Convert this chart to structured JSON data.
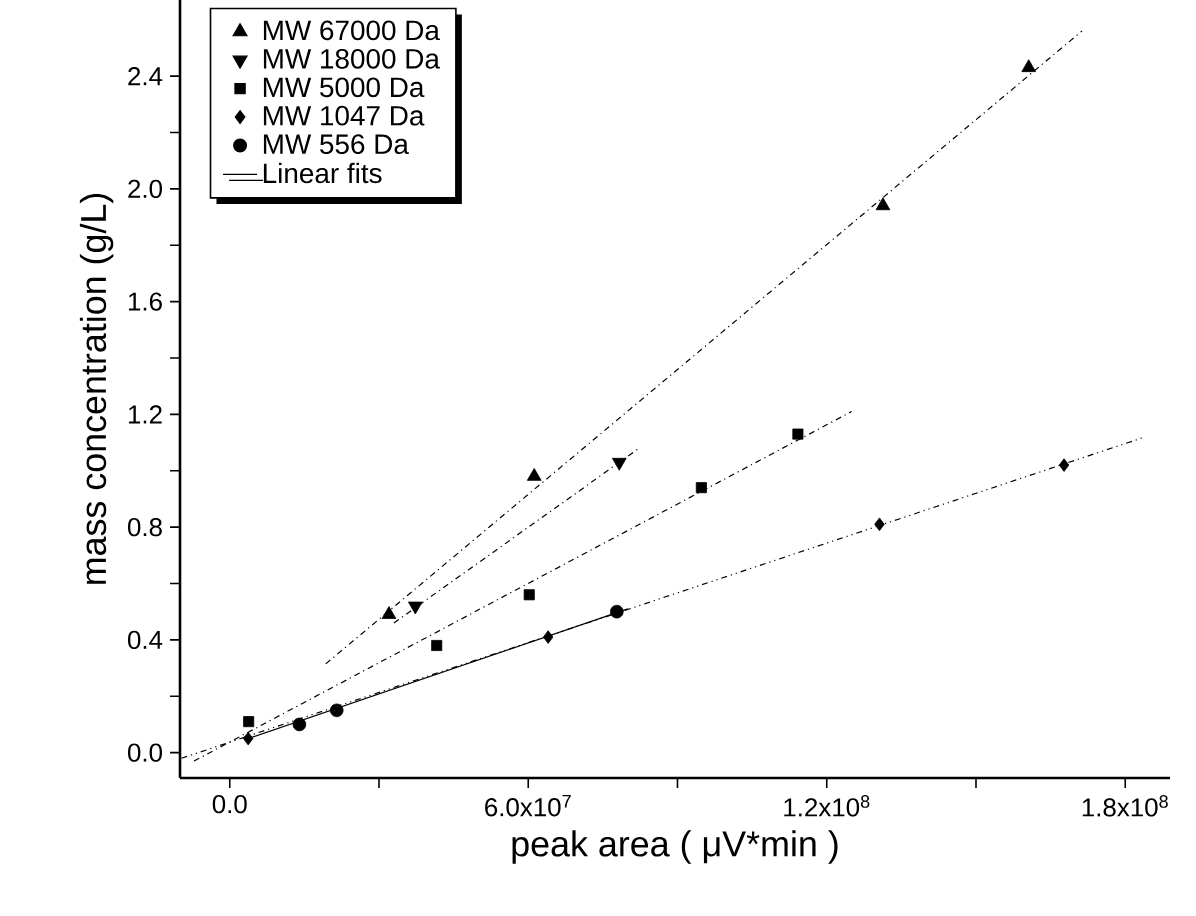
{
  "chart_data": {
    "type": "scatter",
    "xlabel": "peak area ( μV*min )",
    "ylabel": "mass concentration (g/L)",
    "xlim": [
      -10000000,
      189000000
    ],
    "ylim": [
      -0.09,
      2.67
    ],
    "xticks": [
      {
        "value": 0,
        "label": "0.0"
      },
      {
        "value": 30000000,
        "label": null
      },
      {
        "value": 60000000,
        "label": "6.0x10$^{7}$"
      },
      {
        "value": 90000000,
        "label": null
      },
      {
        "value": 120000000,
        "label": "1.2x10$^{8}$"
      },
      {
        "value": 150000000,
        "label": null
      },
      {
        "value": 180000000,
        "label": "1.8x10$^{8}$"
      }
    ],
    "yticks": [
      {
        "value": 0,
        "label": "0.0"
      },
      {
        "value": 0.2,
        "label": null
      },
      {
        "value": 0.4,
        "label": "0.4"
      },
      {
        "value": 0.6,
        "label": null
      },
      {
        "value": 0.8,
        "label": "0.8"
      },
      {
        "value": 1.0,
        "label": null
      },
      {
        "value": 1.2,
        "label": "1.2"
      },
      {
        "value": 1.4,
        "label": null
      },
      {
        "value": 1.6,
        "label": "1.6"
      },
      {
        "value": 1.8,
        "label": null
      },
      {
        "value": 2.0,
        "label": "2.0"
      },
      {
        "value": 2.2,
        "label": null
      },
      {
        "value": 2.4,
        "label": "2.4"
      }
    ],
    "legend": "top left",
    "grid": false,
    "series": [
      {
        "name": "MW 67000 Da",
        "color": "#000000",
        "marker": "triangle",
        "x": [
          32000000,
          61200000,
          131300000,
          160600000
        ],
        "values": [
          0.49,
          0.98,
          1.94,
          2.43
        ]
      },
      {
        "name": "MW 18000 Da",
        "color": "#000000",
        "marker": "triangle down",
        "x": [
          37300000,
          78300000
        ],
        "values": [
          0.52,
          1.03
        ]
      },
      {
        "name": "MW 5000 Da",
        "color": "#000000",
        "marker": "square",
        "x": [
          3800000,
          41600000,
          60200000,
          94800000,
          114200000
        ],
        "values": [
          0.11,
          0.38,
          0.56,
          0.94,
          1.13
        ]
      },
      {
        "name": "MW 1047 Da",
        "color": "#000000",
        "marker": "diamond",
        "x": [
          3700000,
          64000000,
          130600000,
          167700000
        ],
        "values": [
          0.05,
          0.41,
          0.81,
          1.02
        ]
      },
      {
        "name": "MW 556 Da",
        "color": "#000000",
        "marker": "circle",
        "x": [
          14000000,
          21500000,
          77800000
        ],
        "values": [
          0.1,
          0.15,
          0.5
        ]
      },
      {
        "name": "Linear fits",
        "type": "line",
        "color": "#000000",
        "marker": "none",
        "line_style": "solid",
        "x": [
          3700000,
          80000000
        ],
        "values": [
          0.05,
          0.51
        ]
      },
      {
        "type": "line",
        "color": "#000000",
        "marker": "none",
        "line_style": "dashed",
        "x": [
          19300000,
          171300000
        ],
        "values": [
          0.315,
          2.56
        ]
      },
      {
        "type": "line",
        "color": "#000000",
        "marker": "none",
        "line_style": "dashed",
        "x": [
          33000000,
          82300000
        ],
        "values": [
          0.46,
          1.08
        ]
      },
      {
        "type": "line",
        "color": "#000000",
        "marker": "none",
        "line_style": "dashed",
        "x": [
          -7200000,
          125000000
        ],
        "values": [
          -0.03,
          1.21
        ]
      },
      {
        "type": "line",
        "color": "#000000",
        "marker": "none",
        "line_style": "dotted",
        "x": [
          -9700000,
          184000000
        ],
        "values": [
          -0.02,
          1.12
        ]
      }
    ]
  }
}
